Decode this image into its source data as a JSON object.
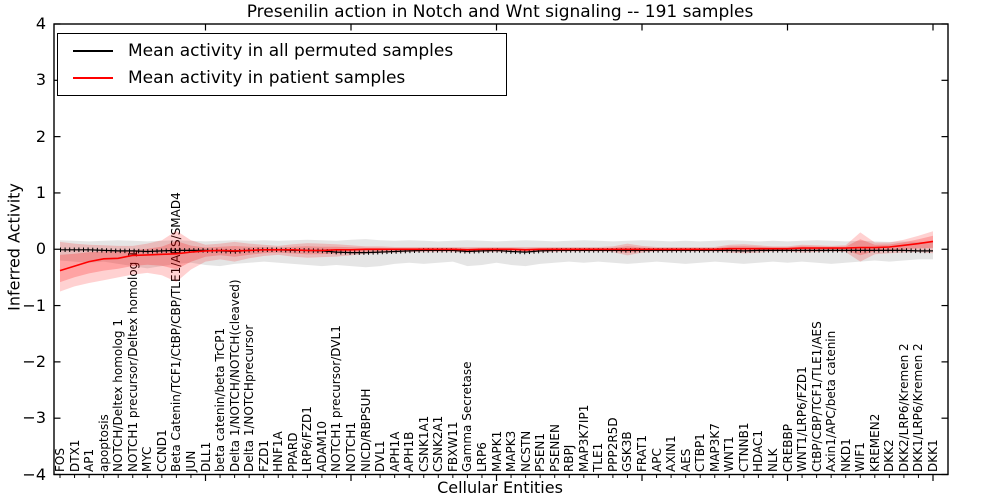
{
  "title": "Presenilin action in Notch and Wnt signaling -- 191 samples",
  "axes": {
    "ylabel": "Inferred Activity",
    "xlabel": "Cellular Entities",
    "yticks": [
      "4",
      "3",
      "2",
      "1",
      "0",
      "−1",
      "−2",
      "−3",
      "−4"
    ],
    "ylim": [
      -4,
      4
    ]
  },
  "legend": {
    "items": [
      {
        "label": "Mean activity in all permuted samples",
        "color": "#000000"
      },
      {
        "label": "Mean activity in patient samples",
        "color": "#ff0000"
      }
    ],
    "position": "upper left"
  },
  "chart_data": {
    "type": "line",
    "title": "Presenilin action in Notch and Wnt signaling -- 191 samples",
    "xlabel": "Cellular Entities",
    "ylabel": "Inferred Activity",
    "ylim": [
      -4,
      4
    ],
    "grid": false,
    "legend_position": "upper left",
    "categories": [
      "FOS",
      "DTX1",
      "AP1",
      "apoptosis",
      "NOTCH/Deltex homolog 1",
      "NOTCH1 precursor/Deltex homolog 1",
      "MYC",
      "CCND1",
      "Beta Catenin/TCF1/CtBP/CBP/TLE1/AES/SMAD4",
      "JUN",
      "DLL1",
      "beta catenin/beta TrCP1",
      "Delta 1/NOTCH/NOTCH(cleaved)",
      "Delta 1/NOTCHprecursor",
      "FZD1",
      "HNF1A",
      "PPARD",
      "LRP6/FZD1",
      "ADAM10",
      "NOTCH1 precursor/DVL1",
      "NOTCH1",
      "NICD/RBPSUH",
      "DVL1",
      "APH1A",
      "APH1B",
      "CSNK1A1",
      "CSNK2A1",
      "FBXW11",
      "Gamma Secretase",
      "LRP6",
      "MAPK1",
      "MAPK3",
      "NCSTN",
      "PSEN1",
      "PSENEN",
      "RBPJ",
      "MAP3K7IP1",
      "TLE1",
      "PPP2R5D",
      "GSK3B",
      "FRAT1",
      "APC",
      "AXIN1",
      "AES",
      "CTBP1",
      "MAP3K7",
      "WNT1",
      "CTNNB1",
      "HDAC1",
      "NLK",
      "CREBBP",
      "WNT1/LRP6/FZD1",
      "CtBP/CBP/TCF1/TLE1/AES",
      "Axin1/APC/beta catenin",
      "NKD1",
      "WIF1",
      "KREMEN2",
      "DKK2",
      "DKK2/LRP6/Kremen 2",
      "DKK1/LRP6/Kremen 2",
      "DKK1"
    ],
    "series": [
      {
        "name": "Mean activity in all permuted samples",
        "color": "#000000",
        "values": [
          -0.01,
          -0.01,
          -0.01,
          -0.02,
          -0.03,
          -0.03,
          -0.04,
          -0.03,
          -0.02,
          -0.02,
          -0.02,
          -0.03,
          -0.04,
          -0.02,
          -0.01,
          -0.01,
          -0.02,
          -0.02,
          -0.03,
          -0.05,
          -0.06,
          -0.06,
          -0.05,
          -0.04,
          -0.03,
          -0.02,
          -0.02,
          -0.02,
          -0.04,
          -0.03,
          -0.02,
          -0.04,
          -0.05,
          -0.03,
          -0.02,
          -0.02,
          -0.02,
          -0.02,
          -0.02,
          -0.02,
          -0.02,
          -0.02,
          -0.02,
          -0.02,
          -0.02,
          -0.02,
          -0.02,
          -0.03,
          -0.02,
          -0.02,
          -0.02,
          -0.02,
          -0.02,
          -0.02,
          -0.02,
          -0.02,
          -0.02,
          -0.02,
          -0.02,
          -0.03,
          -0.03
        ]
      },
      {
        "name": "Mean activity in patient samples",
        "color": "#ff0000",
        "values": [
          -0.38,
          -0.3,
          -0.22,
          -0.17,
          -0.16,
          -0.11,
          -0.1,
          -0.09,
          -0.08,
          -0.05,
          -0.03,
          -0.02,
          -0.03,
          -0.02,
          -0.01,
          -0.01,
          -0.01,
          -0.02,
          -0.02,
          -0.01,
          -0.01,
          0,
          0,
          0,
          0,
          0,
          0,
          0,
          -0.01,
          0,
          0,
          0,
          -0.01,
          0,
          0,
          0,
          0,
          0,
          0,
          0,
          0,
          0,
          0,
          0,
          0,
          0,
          0.01,
          0.01,
          0.01,
          0.01,
          0.01,
          0.02,
          0.02,
          0.02,
          0.02,
          0.03,
          0.03,
          0.04,
          0.07,
          0.1,
          0.14
        ]
      }
    ],
    "bands": [
      {
        "name": "permuted samples range",
        "color": "#000000",
        "opacity": 0.1,
        "upper": [
          0.16,
          0.15,
          0.14,
          0.15,
          0.16,
          0.15,
          0.14,
          0.15,
          0.16,
          0.15,
          0.14,
          0.15,
          0.16,
          0.15,
          0.16,
          0.15,
          0.16,
          0.17,
          0.16,
          0.15,
          0.17,
          0.18,
          0.16,
          0.15,
          0.16,
          0.15,
          0.14,
          0.15,
          0.16,
          0.15,
          0.14,
          0.15,
          0.16,
          0.15,
          0.14,
          0.15,
          0.16,
          0.15,
          0.14,
          0.15,
          0.16,
          0.15,
          0.14,
          0.15,
          0.14,
          0.15,
          0.16,
          0.15,
          0.14,
          0.15,
          0.14,
          0.15,
          0.16,
          0.15,
          0.14,
          0.15,
          0.14,
          0.13,
          0.14,
          0.13,
          0.13
        ],
        "lower": [
          -0.2,
          -0.22,
          -0.24,
          -0.22,
          -0.26,
          -0.3,
          -0.34,
          -0.3,
          -0.26,
          -0.24,
          -0.28,
          -0.3,
          -0.26,
          -0.24,
          -0.22,
          -0.24,
          -0.26,
          -0.28,
          -0.3,
          -0.28,
          -0.3,
          -0.32,
          -0.3,
          -0.26,
          -0.24,
          -0.26,
          -0.24,
          -0.22,
          -0.3,
          -0.28,
          -0.24,
          -0.28,
          -0.3,
          -0.26,
          -0.24,
          -0.22,
          -0.24,
          -0.22,
          -0.24,
          -0.26,
          -0.24,
          -0.22,
          -0.24,
          -0.26,
          -0.24,
          -0.22,
          -0.24,
          -0.26,
          -0.24,
          -0.22,
          -0.24,
          -0.22,
          -0.24,
          -0.26,
          -0.24,
          -0.22,
          -0.2,
          -0.22,
          -0.2,
          -0.18,
          -0.18
        ]
      },
      {
        "name": "patient samples range",
        "color": "#ff0000",
        "opacity": 0.18,
        "inner_opacity": 0.22,
        "inner_scale": 0.55,
        "upper": [
          0.13,
          0.1,
          0.08,
          0.07,
          0.06,
          0.06,
          0.1,
          0.16,
          0.33,
          0.16,
          0.08,
          0.1,
          0.13,
          0.1,
          0.08,
          0.06,
          0.09,
          0.11,
          0.1,
          0.09,
          0.07,
          0.05,
          0.05,
          0.04,
          0.04,
          0.04,
          0.04,
          0.04,
          0.04,
          0.04,
          0.04,
          0.04,
          0.04,
          0.04,
          0.04,
          0.04,
          0.04,
          0.04,
          0.05,
          0.1,
          0.06,
          0.04,
          0.04,
          0.04,
          0.04,
          0.04,
          0.08,
          0.09,
          0.07,
          0.05,
          0.05,
          0.08,
          0.07,
          0.06,
          0.07,
          0.3,
          0.12,
          0.12,
          0.17,
          0.24,
          0.32
        ],
        "lower": [
          -0.75,
          -0.66,
          -0.6,
          -0.55,
          -0.5,
          -0.45,
          -0.42,
          -0.46,
          -0.58,
          -0.36,
          -0.22,
          -0.18,
          -0.22,
          -0.16,
          -0.12,
          -0.1,
          -0.13,
          -0.15,
          -0.14,
          -0.13,
          -0.11,
          -0.08,
          -0.07,
          -0.06,
          -0.05,
          -0.05,
          -0.05,
          -0.05,
          -0.06,
          -0.05,
          -0.05,
          -0.05,
          -0.06,
          -0.05,
          -0.05,
          -0.04,
          -0.04,
          -0.04,
          -0.05,
          -0.11,
          -0.06,
          -0.04,
          -0.04,
          -0.04,
          -0.04,
          -0.04,
          -0.06,
          -0.07,
          -0.06,
          -0.04,
          -0.04,
          -0.06,
          -0.05,
          -0.04,
          -0.05,
          -0.22,
          -0.09,
          -0.07,
          -0.06,
          -0.05,
          -0.07
        ]
      }
    ]
  }
}
